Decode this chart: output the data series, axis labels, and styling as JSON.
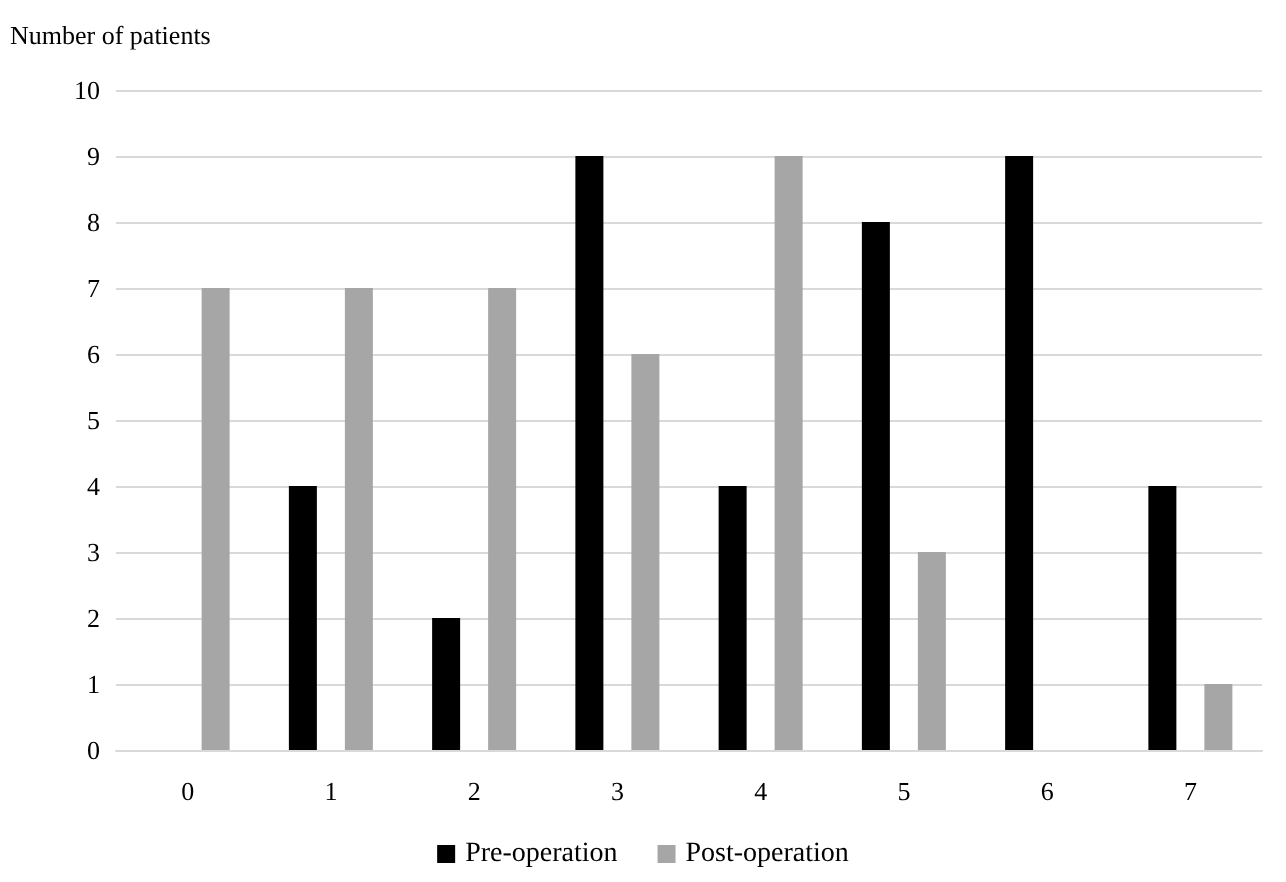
{
  "chart_data": {
    "type": "bar",
    "ylabel": "Number of patients",
    "categories": [
      "0",
      "1",
      "2",
      "3",
      "4",
      "5",
      "6",
      "7"
    ],
    "series": [
      {
        "name": "Pre-operation",
        "color": "#000000",
        "values": [
          0,
          4,
          2,
          9,
          4,
          8,
          9,
          4
        ]
      },
      {
        "name": "Post-operation",
        "color": "#a6a6a6",
        "values": [
          7,
          7,
          7,
          6,
          9,
          3,
          0,
          1
        ]
      }
    ],
    "ylim": [
      0,
      10
    ],
    "yticks": [
      0,
      1,
      2,
      3,
      4,
      5,
      6,
      7,
      8,
      9,
      10
    ],
    "grid": "y",
    "legend": "bottom"
  }
}
